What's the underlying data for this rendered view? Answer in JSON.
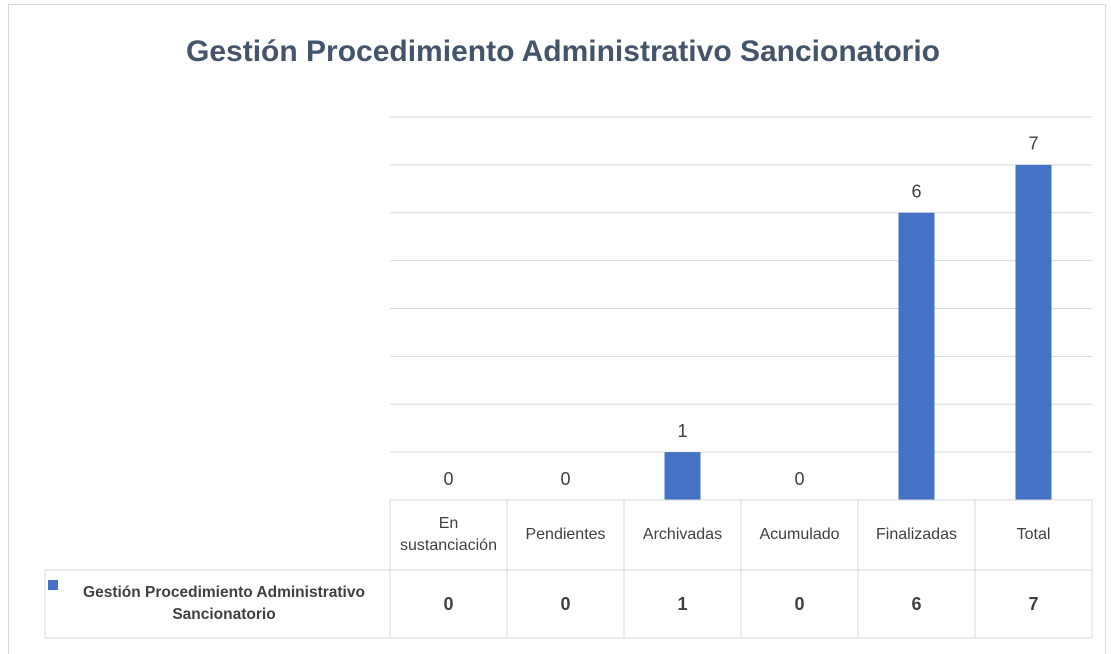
{
  "chart_data": {
    "type": "bar",
    "title": "Gestión Procedimiento Administrativo Sancionatorio",
    "categories": [
      "En sustanciación",
      "Pendientes",
      "Archivadas",
      "Acumulado",
      "Finalizadas",
      "Total"
    ],
    "series": [
      {
        "name": "Gestión Procedimiento Administrativo Sancionatorio",
        "color": "#4472c4",
        "values": [
          0,
          0,
          1,
          0,
          6,
          7
        ]
      }
    ],
    "ylim": [
      0,
      8
    ],
    "yticks": [
      0,
      1,
      2,
      3,
      4,
      5,
      6,
      7,
      8
    ],
    "grid": true,
    "data_table": true
  }
}
